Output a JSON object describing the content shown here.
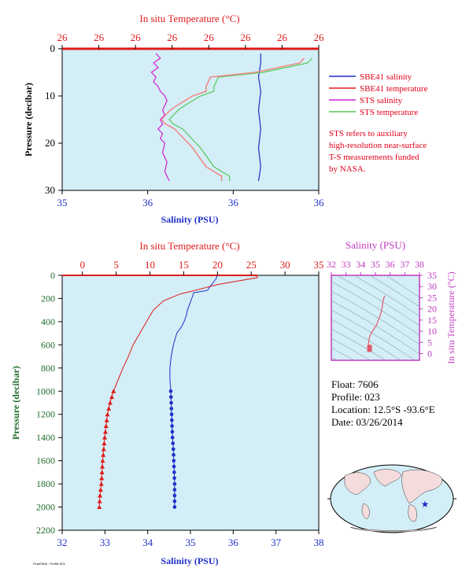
{
  "float_info": {
    "float": "Float: 7606",
    "profile": "Profile: 023",
    "location": "Location: 12.5°S -93.6°E",
    "date": "Date: 03/26/2014"
  },
  "note": [
    "STS refers to auxiliary",
    "high-resolution near-surface",
    "T-S measurements funded",
    "by NASA."
  ],
  "legend": [
    {
      "label": "SBE41 salinity",
      "color": "#1f2fc8"
    },
    {
      "label": "SBE41 temperature",
      "color": "#e01a1a"
    },
    {
      "label": "STS salinity",
      "color": "#d21fd2"
    },
    {
      "label": "STS temperature",
      "color": "#55c955"
    }
  ],
  "colors": {
    "plot_bg": "#d3eef7",
    "salinity": "#1f2fc8",
    "temperature": "#e01a1a",
    "sts_salinity": "#d21fd2",
    "sts_temperature": "#55c955",
    "ts_axis": "#c03bc0",
    "depth_label": "#1f6b2a",
    "map_land": "#f5dcdc",
    "map_ocean": "#d3eef7"
  },
  "footer_code": "Float7606 · Profile 023",
  "chart_data": [
    {
      "type": "line",
      "id": "near-surface",
      "title": "In situ Temperature (°C)",
      "xlabel": "Salinity (PSU)",
      "ylabel": "Pressure (decibar)",
      "x_ticks": [
        "35",
        "36",
        "36",
        "36"
      ],
      "top_ticks": [
        "26",
        "26",
        "26",
        "26",
        "26",
        "26",
        "26",
        "26"
      ],
      "y_ticks": [
        "0",
        "10",
        "20",
        "30"
      ],
      "ylim": [
        30,
        0
      ],
      "series": [
        {
          "name": "SBE41 salinity",
          "color": "#1f2fc8",
          "x": [
            35.89,
            35.89,
            35.88,
            35.89,
            35.88,
            35.89,
            35.88,
            35.89,
            35.88
          ],
          "y": [
            1,
            3,
            6,
            9,
            13,
            17,
            21,
            25,
            28
          ]
        },
        {
          "name": "SBE41 temperature",
          "color": "#e01a1a",
          "x": [],
          "y": []
        },
        {
          "name": "STS salinity",
          "color": "#d21fd2",
          "x": [
            35.42,
            35.44,
            35.41,
            35.43,
            35.4,
            35.42,
            35.41,
            35.43,
            35.44,
            35.46,
            35.47,
            35.46,
            35.45,
            35.46,
            35.44,
            35.45,
            35.43,
            35.45,
            35.44,
            35.46,
            35.45,
            35.47,
            35.46,
            35.47,
            35.48
          ],
          "y": [
            1,
            2,
            3,
            4,
            5,
            6,
            7,
            8,
            9,
            10,
            11,
            12,
            13,
            14,
            15,
            16,
            17,
            18,
            19,
            20,
            22,
            24,
            26,
            27,
            28
          ]
        },
        {
          "name": "STS temperature",
          "color": "#55c955",
          "x": [
            35.75,
            35.75,
            35.68,
            35.65,
            35.62,
            35.58,
            35.54,
            35.5,
            35.48,
            35.5,
            35.52,
            35.55,
            35.62,
            35.68,
            35.68,
            35.7,
            35.9,
            36.0,
            36.1,
            36.12
          ],
          "y": [
            28,
            27,
            25,
            23,
            21,
            19,
            17,
            16,
            15,
            14,
            13,
            12,
            10,
            9,
            8,
            6,
            5,
            4,
            3,
            2
          ]
        }
      ]
    },
    {
      "type": "line",
      "id": "full-profile",
      "title": "In situ Temperature (°C)",
      "xlabel": "Salinity (PSU)",
      "ylabel": "Pressure (decibar)",
      "x_ticks": [
        "32",
        "33",
        "34",
        "35",
        "36",
        "37",
        "38"
      ],
      "top_ticks": [
        "0",
        "5",
        "10",
        "15",
        "20",
        "25",
        "30",
        "35"
      ],
      "y_ticks": [
        "0",
        "200",
        "400",
        "600",
        "800",
        "1000",
        "1200",
        "1400",
        "1600",
        "1800",
        "2000",
        "2200"
      ],
      "xlim": [
        32,
        38
      ],
      "temp_lim": [
        -3,
        35
      ],
      "ylim": [
        2200,
        0
      ],
      "series": [
        {
          "name": "SBE41 salinity",
          "color": "#1f2fc8",
          "x": [
            35.62,
            35.6,
            35.45,
            35.4,
            35.08,
            35.03,
            34.98,
            34.93,
            34.9,
            34.85,
            34.78,
            34.68,
            34.6,
            34.55,
            34.52,
            34.52,
            34.54,
            34.56,
            34.58,
            34.6,
            34.61,
            34.62,
            34.63,
            34.63,
            34.63
          ],
          "y": [
            5,
            30,
            100,
            130,
            150,
            200,
            250,
            300,
            350,
            400,
            450,
            500,
            600,
            700,
            800,
            900,
            1000,
            1200,
            1400,
            1500,
            1600,
            1700,
            1800,
            1900,
            2000
          ]
        },
        {
          "name": "SBE41 temperature",
          "color": "#e01a1a",
          "x": [
            25.9,
            25.9,
            20.0,
            16.0,
            14.5,
            12.0,
            10.5,
            9.5,
            8.5,
            7.5,
            6.8,
            6.0,
            5.3,
            4.6,
            4.1,
            3.7,
            3.3,
            3.0,
            2.8,
            2.6,
            2.5
          ],
          "y": [
            0,
            20,
            80,
            140,
            160,
            220,
            300,
            400,
            500,
            600,
            700,
            800,
            900,
            1000,
            1100,
            1200,
            1400,
            1600,
            1800,
            1900,
            2000
          ]
        }
      ],
      "deep_markers_from_pressure": 1000
    },
    {
      "type": "line",
      "id": "ts-diagram",
      "title": "Salinity (PSU)",
      "ylabel": "In situ Temperature (°C)",
      "x_ticks": [
        "32",
        "33",
        "34",
        "35",
        "36",
        "37",
        "38"
      ],
      "y_ticks": [
        "0",
        "5",
        "10",
        "15",
        "20",
        "25",
        "30",
        "35"
      ],
      "xlim": [
        32,
        38
      ],
      "ylim": [
        -3,
        35
      ],
      "series": [
        {
          "name": "T-S",
          "color": "#e05a6a",
          "x": [
            35.62,
            35.5,
            35.45,
            35.35,
            35.2,
            35.1,
            35.0,
            34.85,
            34.7,
            34.58,
            34.55,
            34.53,
            34.55,
            34.58,
            34.6
          ],
          "y": [
            25.9,
            23.0,
            20.0,
            17.5,
            15.0,
            13.0,
            12.0,
            10.5,
            9.0,
            7.0,
            5.5,
            4.6,
            3.5,
            3.0,
            2.5
          ]
        }
      ]
    }
  ]
}
